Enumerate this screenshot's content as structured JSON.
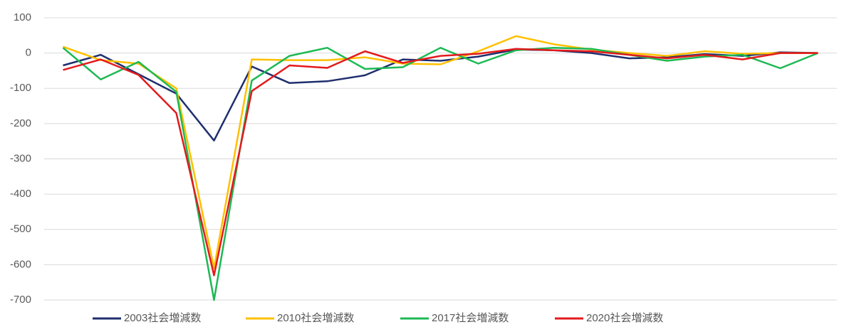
{
  "chart_data": {
    "type": "line",
    "categories": [
      null,
      null,
      null,
      null,
      null,
      null,
      null,
      null,
      null,
      null,
      null,
      null,
      null,
      null,
      null,
      null,
      null,
      null,
      null,
      null,
      null
    ],
    "series": [
      {
        "name": "2003社会増減数",
        "color": "#1f2f6e",
        "values": [
          -35,
          -5,
          -60,
          -115,
          -248,
          -38,
          -85,
          -80,
          -63,
          -18,
          -22,
          -10,
          10,
          8,
          0,
          -15,
          -12,
          -3,
          -8,
          2,
          0
        ]
      },
      {
        "name": "2010社会増減数",
        "color": "#ffc000",
        "values": [
          18,
          -20,
          -30,
          -100,
          -610,
          -18,
          -20,
          -20,
          -12,
          -30,
          -32,
          5,
          48,
          25,
          10,
          0,
          -8,
          5,
          -2,
          0,
          0
        ]
      },
      {
        "name": "2017社会増減数",
        "color": "#1db954",
        "values": [
          15,
          -75,
          -25,
          -110,
          -700,
          -78,
          -8,
          15,
          -45,
          -40,
          15,
          -30,
          8,
          15,
          12,
          -5,
          -22,
          -10,
          -5,
          -43,
          0
        ]
      },
      {
        "name": "2020社会増減数",
        "color": "#e31a1c",
        "values": [
          -48,
          -18,
          -62,
          -170,
          -630,
          -108,
          -35,
          -42,
          5,
          -28,
          -8,
          -2,
          12,
          8,
          5,
          -5,
          -15,
          -5,
          -18,
          0,
          0
        ]
      }
    ],
    "ylim": [
      -700,
      100
    ],
    "yticks": [
      100,
      0,
      -100,
      -200,
      -300,
      -400,
      -500,
      -600,
      -700
    ],
    "grid": true,
    "legend": "bottom"
  }
}
